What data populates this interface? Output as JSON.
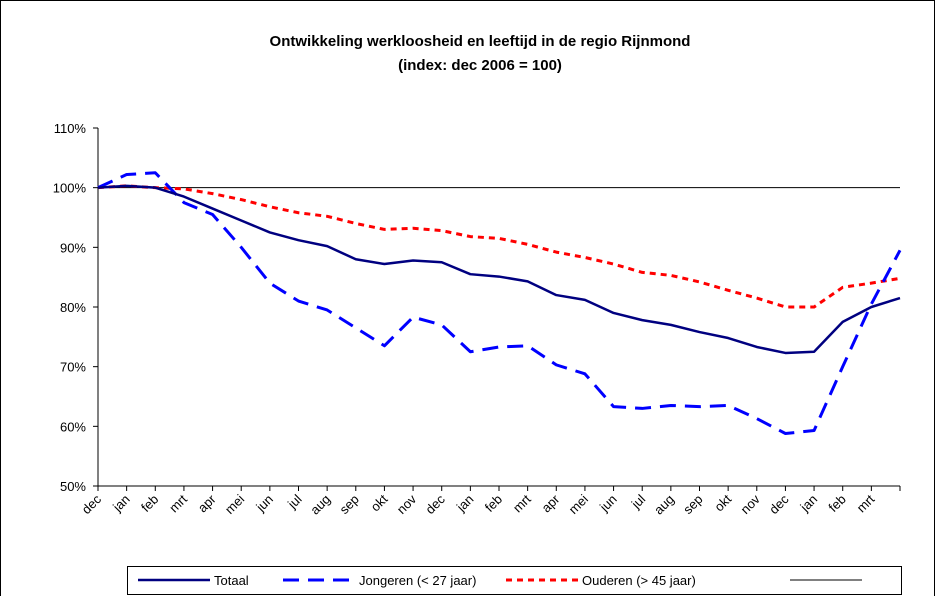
{
  "chart_data": {
    "type": "line",
    "title": "Ontwikkeling werkloosheid en leeftijd in de regio Rijnmond",
    "subtitle": "(index: dec 2006 = 100)",
    "categories": [
      "dec",
      "jan",
      "feb",
      "mrt",
      "apr",
      "mei",
      "jun",
      "jul",
      "aug",
      "sep",
      "okt",
      "nov",
      "dec",
      "jan",
      "feb",
      "mrt",
      "apr",
      "mei",
      "jun",
      "jul",
      "aug",
      "sep",
      "okt",
      "nov",
      "dec",
      "jan",
      "feb",
      "mrt",
      null
    ],
    "ylim": [
      50,
      110
    ],
    "yticks": [
      {
        "value": 50,
        "label": "50%"
      },
      {
        "value": 60,
        "label": "60%"
      },
      {
        "value": 70,
        "label": "70%"
      },
      {
        "value": 80,
        "label": "80%"
      },
      {
        "value": 90,
        "label": "90%"
      },
      {
        "value": 100,
        "label": "100%"
      },
      {
        "value": 110,
        "label": "110%"
      }
    ],
    "grid": false,
    "legend": "bottom",
    "series": [
      {
        "name": "Totaal",
        "color": "#000080",
        "style": "solid",
        "values": [
          100,
          100.3,
          100,
          98.5,
          96.5,
          94.5,
          92.5,
          91.2,
          90.2,
          88,
          87.2,
          87.8,
          87.5,
          85.5,
          85.1,
          84.3,
          82,
          81.2,
          79,
          77.8,
          77,
          75.8,
          74.8,
          73.3,
          72.3,
          72.5,
          77.5,
          80,
          81.5
        ]
      },
      {
        "name": "Jongeren (< 27 jaar)",
        "color": "#0000ff",
        "style": "long-dash",
        "values": [
          100,
          102.2,
          102.5,
          97.5,
          95.5,
          90,
          84,
          81,
          79.5,
          76.5,
          73.5,
          78.3,
          77,
          72.5,
          73.3,
          73.5,
          70.3,
          68.8,
          63.3,
          63,
          63.5,
          63.3,
          63.5,
          61.3,
          58.8,
          59.3,
          70,
          80.5,
          89.5
        ]
      },
      {
        "name": "Ouderen (> 45 jaar)",
        "color": "#ff0000",
        "style": "short-dash",
        "values": [
          100,
          100.3,
          100,
          99.8,
          99,
          98,
          96.8,
          95.8,
          95.2,
          94,
          93,
          93.2,
          92.8,
          91.8,
          91.5,
          90.5,
          89.2,
          88.3,
          87.2,
          85.8,
          85.3,
          84.2,
          82.8,
          81.5,
          80,
          80,
          83.3,
          84,
          84.8
        ]
      },
      {
        "color": "#000000",
        "style": "thin",
        "values": [
          100,
          100,
          100,
          100,
          100,
          100,
          100,
          100,
          100,
          100,
          100,
          100,
          100,
          100,
          100,
          100,
          100,
          100,
          100,
          100,
          100,
          100,
          100,
          100,
          100,
          100,
          100,
          100,
          100
        ]
      }
    ]
  }
}
